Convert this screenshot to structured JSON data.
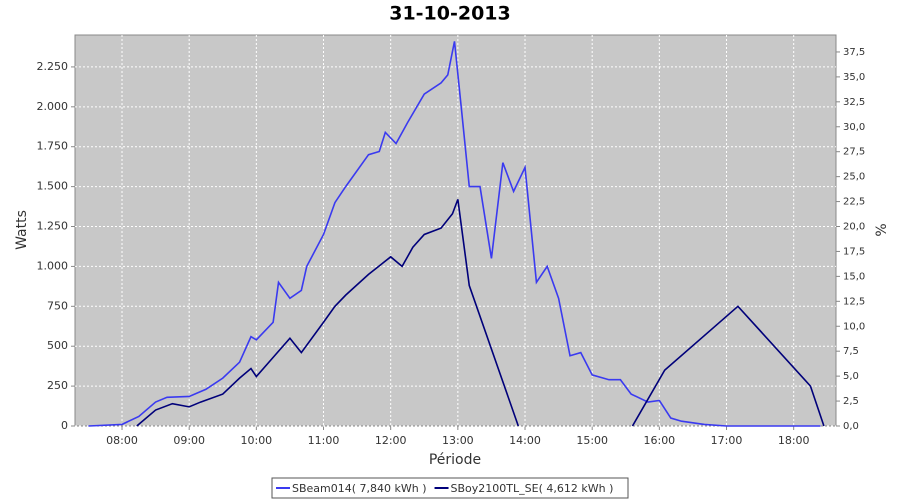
{
  "chart_data": {
    "type": "line",
    "title": "31-10-2013",
    "x_label": "Période",
    "y_label": "Watts",
    "y2_label": "%",
    "xlim": [
      7.3,
      18.63
    ],
    "ylim": [
      0,
      2450
    ],
    "y2lim": [
      0,
      39.2
    ],
    "grid": true,
    "xticks": [
      {
        "value": 8,
        "label": "08:00"
      },
      {
        "value": 9,
        "label": "09:00"
      },
      {
        "value": 10,
        "label": "10:00"
      },
      {
        "value": 11,
        "label": "11:00"
      },
      {
        "value": 12,
        "label": "12:00"
      },
      {
        "value": 13,
        "label": "13:00"
      },
      {
        "value": 14,
        "label": "14:00"
      },
      {
        "value": 15,
        "label": "15:00"
      },
      {
        "value": 16,
        "label": "16:00"
      },
      {
        "value": 17,
        "label": "17:00"
      },
      {
        "value": 18,
        "label": "18:00"
      }
    ],
    "yticks": [
      0,
      250,
      500,
      750,
      {
        "value": 1000,
        "label": "1.000"
      },
      {
        "value": 1250,
        "label": "1.250"
      },
      {
        "value": 1500,
        "label": "1.500"
      },
      {
        "value": 1750,
        "label": "1.750"
      },
      {
        "value": 2000,
        "label": "2.000"
      },
      {
        "value": 2250,
        "label": "2.250"
      }
    ],
    "y2ticks": [
      {
        "value": 0,
        "label": "0,0"
      },
      {
        "value": 2.5,
        "label": "2,5"
      },
      {
        "value": 5,
        "label": "5,0"
      },
      {
        "value": 7.5,
        "label": "7,5"
      },
      {
        "value": 10,
        "label": "10,0"
      },
      {
        "value": 12.5,
        "label": "12,5"
      },
      {
        "value": 15,
        "label": "15,0"
      },
      {
        "value": 17.5,
        "label": "17,5"
      },
      {
        "value": 20,
        "label": "20,0"
      },
      {
        "value": 22.5,
        "label": "22,5"
      },
      {
        "value": 25,
        "label": "25,0"
      },
      {
        "value": 27.5,
        "label": "27,5"
      },
      {
        "value": 30,
        "label": "30,0"
      },
      {
        "value": 32.5,
        "label": "32,5"
      },
      {
        "value": 35,
        "label": "35,0"
      },
      {
        "value": 37.5,
        "label": "37,5"
      }
    ],
    "series": [
      {
        "name": "SBeam014( 7,840 kWh )",
        "color": "#3a3af0",
        "x": [
          7.5,
          8.0,
          8.25,
          8.5,
          8.67,
          9.0,
          9.25,
          9.5,
          9.75,
          9.92,
          10.0,
          10.25,
          10.33,
          10.5,
          10.67,
          10.75,
          11.0,
          11.17,
          11.33,
          11.67,
          11.83,
          11.92,
          12.08,
          12.25,
          12.5,
          12.75,
          12.85,
          12.95,
          13.05,
          13.17,
          13.33,
          13.5,
          13.67,
          13.83,
          14.0,
          14.17,
          14.33,
          14.5,
          14.67,
          14.83,
          15.0,
          15.25,
          15.42,
          15.58,
          15.83,
          16.0,
          16.17,
          16.33,
          16.67,
          17.0,
          18.4
        ],
        "values": [
          0,
          10,
          60,
          150,
          180,
          185,
          230,
          300,
          400,
          560,
          540,
          650,
          900,
          800,
          850,
          1000,
          1200,
          1400,
          1500,
          1700,
          1720,
          1840,
          1770,
          1900,
          2080,
          2150,
          2200,
          2410,
          2000,
          1500,
          1500,
          1050,
          1650,
          1470,
          1620,
          900,
          1000,
          800,
          440,
          460,
          320,
          290,
          290,
          200,
          150,
          160,
          50,
          30,
          10,
          0,
          0
        ]
      },
      {
        "name": "SBoy2100TL_SE( 4,612 kWh )",
        "color": "#00007a",
        "x": [
          8.22,
          8.5,
          8.75,
          9.0,
          9.17,
          9.5,
          9.75,
          9.92,
          10.0,
          10.25,
          10.5,
          10.67,
          11.0,
          11.17,
          11.33,
          11.67,
          12.0,
          12.17,
          12.33,
          12.5,
          12.75,
          12.92,
          13.0,
          13.17,
          13.9,
          14.75,
          15.6,
          16.08,
          17.17,
          18.25,
          18.45
        ],
        "values": [
          0,
          100,
          140,
          120,
          150,
          200,
          300,
          360,
          310,
          430,
          550,
          460,
          650,
          750,
          820,
          950,
          1060,
          1000,
          1120,
          1200,
          1240,
          1330,
          1420,
          880,
          0,
          null,
          0,
          350,
          750,
          250,
          0
        ]
      }
    ]
  }
}
